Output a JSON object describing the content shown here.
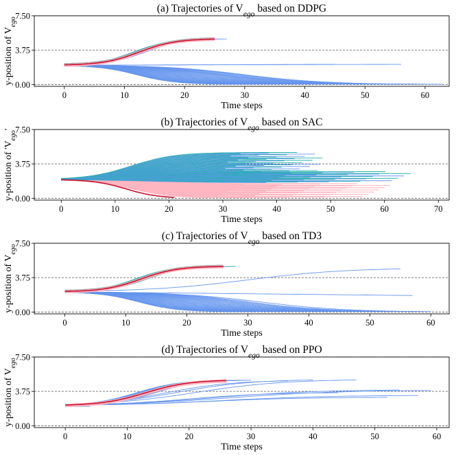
{
  "colors": {
    "blue": "#6495ed",
    "cyan": "#20b2aa",
    "pink": "#ffb6c1",
    "red": "#c8102e",
    "gray": "#a8a8a8",
    "lightblue": "#9ec9f5"
  },
  "chart_data": [
    {
      "id": "a",
      "type": "line",
      "title": "(a) Trajectories of V_ego based on DDPG",
      "title_parts": [
        "(a) Trajectories of V",
        "ego",
        " based on DDPG"
      ],
      "ylabel_parts": [
        "y-position of V",
        "ego",
        ""
      ],
      "xlabel": "Time steps",
      "xlim": [
        -5,
        64
      ],
      "ylim": [
        -0.2,
        7.5
      ],
      "xticks": [
        0,
        10,
        20,
        30,
        40,
        50,
        60
      ],
      "yticks": [
        "0.00",
        "3.75",
        "7.50"
      ],
      "hlines": [
        3.75
      ],
      "start_y": 2.1,
      "lane_change": {
        "group_count": 12,
        "end_x": [
          21,
          27
        ],
        "end_y": 5.0,
        "t_center": 12.5,
        "highlight_end_x": 25
      },
      "lane_keep": [
        {
          "end_x": 56,
          "end_y": 2.2,
          "kind": "flat"
        },
        {
          "end_x": 45,
          "end_y": 2.2,
          "kind": "flat"
        },
        {
          "end_x": 63,
          "end_y": 0.0,
          "kind": "drop",
          "drop_center": 30
        },
        {
          "end_x": 56,
          "end_y": 0.0,
          "kind": "drop",
          "drop_center": 26
        }
      ],
      "drop_group_count": 38,
      "drop_end_range": [
        28,
        60
      ],
      "drop_center_range": [
        12,
        30
      ]
    },
    {
      "id": "b",
      "type": "line",
      "title": "(b) Trajectories of V_ego based on SAC",
      "title_parts": [
        "(b) Trajectories of V",
        "ego",
        " based on SAC"
      ],
      "ylabel_parts": [
        "y-position of 'V",
        "ego",
        "'"
      ],
      "xlabel": "Time steps",
      "xlim": [
        -5,
        72
      ],
      "ylim": [
        -0.2,
        7.5
      ],
      "xticks": [
        0,
        10,
        20,
        30,
        40,
        50,
        60,
        70
      ],
      "yticks": [
        "0.00",
        "3.75",
        "7.50"
      ],
      "hlines": [
        3.75
      ],
      "start_y": 2.05,
      "fan_up": {
        "group_count": 40,
        "end_x_range": [
          30,
          49
        ],
        "end_y_range": [
          2.6,
          5.0
        ]
      },
      "fan_mid": {
        "group_count": 24,
        "end_x_range": [
          38,
          66
        ],
        "end_y_range": [
          1.7,
          2.9
        ]
      },
      "fan_down": {
        "group_count": 34,
        "end_x_range": [
          28,
          62
        ],
        "end_y_range": [
          0.0,
          1.6
        ]
      },
      "red_path": {
        "end_x": 21,
        "end_y": 0.0
      }
    },
    {
      "id": "c",
      "type": "line",
      "title": "(c) Trajectories of V_ego based on TD3",
      "title_parts": [
        "(c) Trajectories of V",
        "ego",
        " based on TD3"
      ],
      "ylabel_parts": [
        "y-position of V",
        "ego",
        ""
      ],
      "xlabel": "Time steps",
      "xlim": [
        -5,
        63
      ],
      "ylim": [
        -0.2,
        7.5
      ],
      "xticks": [
        0,
        10,
        20,
        30,
        40,
        50,
        60
      ],
      "yticks": [
        "0.00",
        "3.75",
        "7.50"
      ],
      "hlines": [
        3.75
      ],
      "start_y": 2.2,
      "lane_change": {
        "group_count": 10,
        "end_x": [
          20,
          28
        ],
        "end_y": 5.0,
        "t_center": 12.5,
        "highlight_end_x": 26
      },
      "lane_keep": [
        {
          "end_x": 55,
          "end_y": 4.7,
          "kind": "rise"
        },
        {
          "end_x": 57,
          "end_y": 1.8,
          "kind": "flat"
        },
        {
          "end_x": 60,
          "end_y": 0.0,
          "kind": "drop",
          "drop_center": 32
        }
      ],
      "drop_group_count": 36,
      "drop_end_range": [
        28,
        58
      ],
      "drop_center_range": [
        12,
        30
      ]
    },
    {
      "id": "d",
      "type": "line",
      "title": "(d) Trajectories of V_ego based on PPO",
      "title_parts": [
        "(d) Trajectories of V",
        "ego",
        " based on PPO"
      ],
      "ylabel_parts": [
        "y-position of V",
        "ego",
        ""
      ],
      "xlabel": "Time steps",
      "xlim": [
        -5,
        62
      ],
      "ylim": [
        -0.2,
        7.5
      ],
      "xticks": [
        0,
        10,
        20,
        30,
        40,
        50,
        60
      ],
      "yticks": [
        "0.00",
        "3.75",
        "7.50"
      ],
      "hlines": [
        3.75
      ],
      "start_y": 2.2,
      "lane_change": {
        "group_count": 14,
        "end_x": [
          24,
          30
        ],
        "end_y": 5.0,
        "t_center": 13,
        "highlight_end_x": 26
      },
      "slow_change": [
        {
          "end_x": 59,
          "end_y": 3.85
        },
        {
          "end_x": 54,
          "end_y": 3.9
        },
        {
          "end_x": 57,
          "end_y": 3.3
        },
        {
          "end_x": 52,
          "end_y": 3.1
        },
        {
          "end_x": 47,
          "end_y": 5.0
        },
        {
          "end_x": 40,
          "end_y": 5.0
        },
        {
          "end_x": 36,
          "end_y": 4.9
        },
        {
          "end_x": 44,
          "end_y": 3.6
        }
      ]
    }
  ]
}
